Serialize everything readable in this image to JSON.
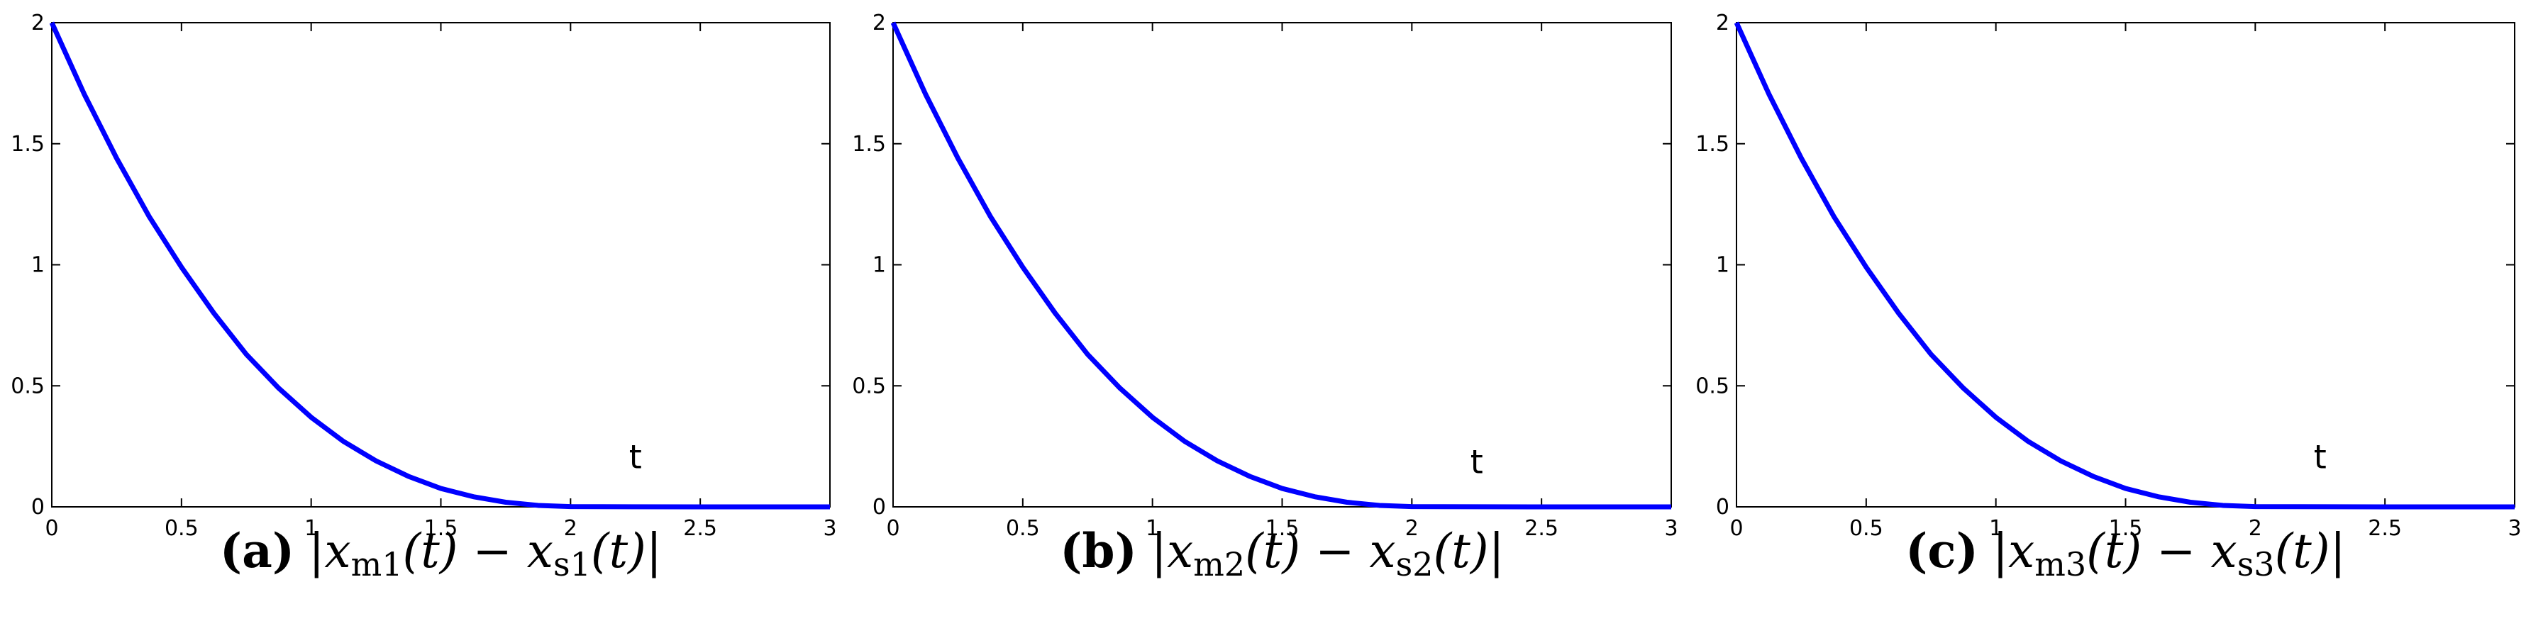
{
  "chart_data": [
    {
      "type": "line",
      "x": [
        0,
        0.125,
        0.25,
        0.375,
        0.5,
        0.625,
        0.75,
        0.875,
        1,
        1.125,
        1.25,
        1.375,
        1.5,
        1.625,
        1.75,
        1.875,
        2,
        2.5,
        3
      ],
      "series": [
        {
          "color": "#0000ff",
          "values": [
            2,
            1.705,
            1.44,
            1.2,
            0.99,
            0.8,
            0.63,
            0.49,
            0.37,
            0.27,
            0.19,
            0.126,
            0.076,
            0.042,
            0.019,
            0.006,
            0.001,
            0,
            0
          ]
        }
      ],
      "xlim": [
        0,
        3
      ],
      "ylim": [
        0,
        2
      ],
      "xticks": [
        0,
        0.5,
        1,
        1.5,
        2,
        2.5,
        3
      ],
      "yticks": [
        0,
        0.5,
        1,
        1.5,
        2
      ],
      "annotation": {
        "text": "t",
        "x": 2.25,
        "y": 0.2
      },
      "caption": {
        "label": "(a)",
        "parts": [
          "|x",
          "m1",
          "(t) − x",
          "s1",
          "(t)|"
        ]
      }
    },
    {
      "type": "line",
      "x": [
        0,
        0.125,
        0.25,
        0.375,
        0.5,
        0.625,
        0.75,
        0.875,
        1,
        1.125,
        1.25,
        1.375,
        1.5,
        1.625,
        1.75,
        1.875,
        2,
        2.5,
        3
      ],
      "series": [
        {
          "color": "#0000ff",
          "values": [
            2,
            1.705,
            1.44,
            1.2,
            0.99,
            0.8,
            0.63,
            0.49,
            0.37,
            0.27,
            0.19,
            0.126,
            0.076,
            0.042,
            0.019,
            0.006,
            0.001,
            0,
            0
          ]
        }
      ],
      "xlim": [
        0,
        3
      ],
      "ylim": [
        0,
        2
      ],
      "xticks": [
        0,
        0.5,
        1,
        1.5,
        2,
        2.5,
        3
      ],
      "yticks": [
        0,
        0.5,
        1,
        1.5,
        2
      ],
      "annotation": {
        "text": "t",
        "x": 2.25,
        "y": 0.18
      },
      "caption": {
        "label": "(b)",
        "parts": [
          "|x",
          "m2",
          "(t) − x",
          "s2",
          "(t)|"
        ]
      }
    },
    {
      "type": "line",
      "x": [
        0,
        0.125,
        0.25,
        0.375,
        0.5,
        0.625,
        0.75,
        0.875,
        1,
        1.125,
        1.25,
        1.375,
        1.5,
        1.625,
        1.75,
        1.875,
        2,
        2.5,
        3
      ],
      "series": [
        {
          "color": "#0000ff",
          "values": [
            2,
            1.705,
            1.44,
            1.2,
            0.99,
            0.8,
            0.63,
            0.49,
            0.37,
            0.27,
            0.19,
            0.126,
            0.076,
            0.042,
            0.019,
            0.006,
            0.001,
            0,
            0
          ]
        }
      ],
      "xlim": [
        0,
        3
      ],
      "ylim": [
        0,
        2
      ],
      "xticks": [
        0,
        0.5,
        1,
        1.5,
        2,
        2.5,
        3
      ],
      "yticks": [
        0,
        0.5,
        1,
        1.5,
        2
      ],
      "annotation": {
        "text": "t",
        "x": 2.25,
        "y": 0.2
      },
      "caption": {
        "label": "(c)",
        "parts": [
          "|x",
          "m3",
          "(t) − x",
          "s3",
          "(t)|"
        ]
      }
    }
  ]
}
